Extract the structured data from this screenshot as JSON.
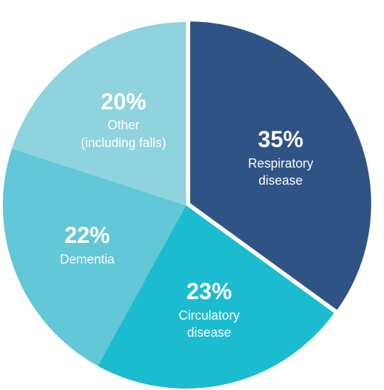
{
  "chart_data": {
    "type": "pie",
    "categories": [
      "Respiratory disease",
      "Circulatory disease",
      "Dementia",
      "Other (including falls)"
    ],
    "values": [
      35,
      23,
      22,
      20
    ],
    "value_labels": [
      "35%",
      "23%",
      "22%",
      "20%"
    ],
    "colors": [
      "#2f5384",
      "#1bbccf",
      "#62c7d6",
      "#8fd3de"
    ]
  }
}
